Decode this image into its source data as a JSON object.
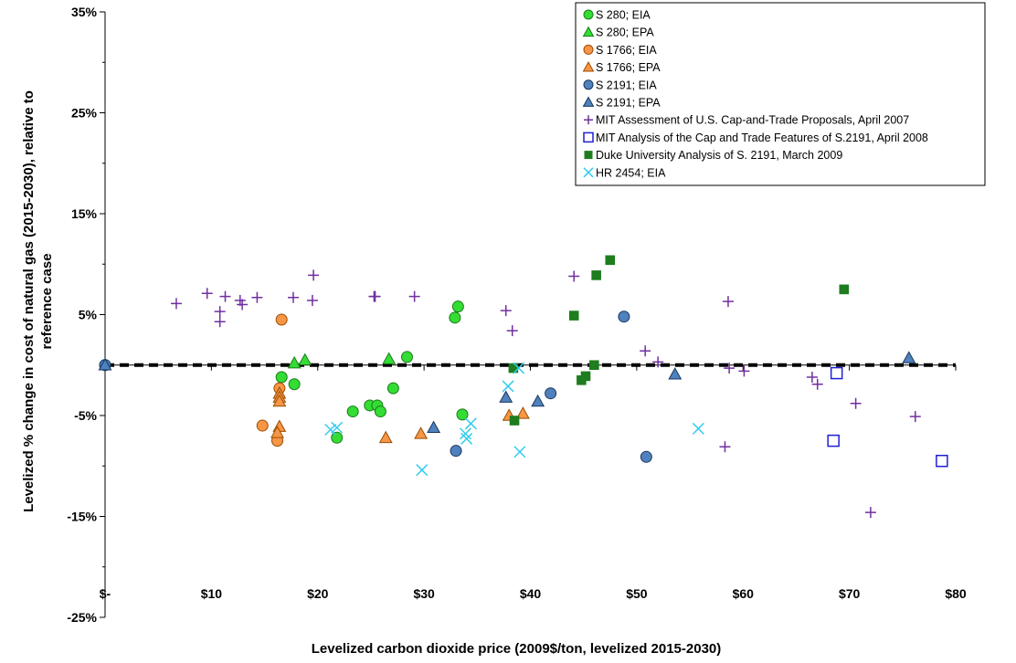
{
  "chart_data": {
    "type": "scatter",
    "title": "",
    "xlabel": "Levelized carbon dioxide price (2009$/ton, levelized 2015-2030)",
    "ylabel": "Levelized % change in cost of natural gas (2015-2030), relative to reference case",
    "ylabel_lines": [
      "Levelized % change in cost of natural gas (2015-2030), relative to",
      "reference case"
    ],
    "xlim": [
      0,
      80
    ],
    "ylim": [
      -25,
      35
    ],
    "x_ticks": [
      {
        "value": 0,
        "label": "$-"
      },
      {
        "value": 10,
        "label": "$10"
      },
      {
        "value": 20,
        "label": "$20"
      },
      {
        "value": 30,
        "label": "$30"
      },
      {
        "value": 40,
        "label": "$40"
      },
      {
        "value": 50,
        "label": "$50"
      },
      {
        "value": 60,
        "label": "$60"
      },
      {
        "value": 70,
        "label": "$70"
      },
      {
        "value": 80,
        "label": "$80"
      }
    ],
    "y_ticks": [
      {
        "value": 35,
        "label": "35%"
      },
      {
        "value": 25,
        "label": "25%"
      },
      {
        "value": 15,
        "label": "15%"
      },
      {
        "value": 5,
        "label": "5%"
      },
      {
        "value": -5,
        "label": "-5%"
      },
      {
        "value": -15,
        "label": "-15%"
      },
      {
        "value": -25,
        "label": "-25%"
      }
    ],
    "grid": false,
    "legend_position": "top-right",
    "reference_line": {
      "y": 0,
      "style": "dashed",
      "color": "#000000"
    },
    "series": [
      {
        "name": "S 280; EIA",
        "marker": "circle",
        "color": "#33dd33",
        "stroke": "#1a7a1a",
        "points": [
          [
            0,
            0
          ],
          [
            16.6,
            -1.2
          ],
          [
            17.8,
            -1.9
          ],
          [
            23.3,
            -4.6
          ],
          [
            24.9,
            -4.0
          ],
          [
            25.6,
            -4.0
          ],
          [
            25.9,
            -4.6
          ],
          [
            27.1,
            -2.3
          ],
          [
            28.4,
            0.8
          ],
          [
            32.9,
            4.7
          ],
          [
            33.2,
            5.8
          ],
          [
            33.6,
            -4.9
          ],
          [
            21.8,
            -7.2
          ]
        ]
      },
      {
        "name": "S 280; EPA",
        "marker": "triangle",
        "color": "#33dd33",
        "stroke": "#1a7a1a",
        "points": [
          [
            17.8,
            0.2
          ],
          [
            18.8,
            0.5
          ],
          [
            26.7,
            0.6
          ]
        ]
      },
      {
        "name": "S 1766; EIA",
        "marker": "circle",
        "color": "#f79646",
        "stroke": "#9a4d00",
        "points": [
          [
            16.6,
            4.5
          ],
          [
            14.8,
            -6.0
          ],
          [
            16.2,
            -7.5
          ],
          [
            16.4,
            -2.3
          ]
        ]
      },
      {
        "name": "S 1766; EPA",
        "marker": "triangle",
        "color": "#f79646",
        "stroke": "#9a4d00",
        "points": [
          [
            16.4,
            -2.8
          ],
          [
            16.4,
            -3.2
          ],
          [
            16.4,
            -3.6
          ],
          [
            16.4,
            -6.1
          ],
          [
            16.2,
            -6.7
          ],
          [
            26.4,
            -7.2
          ],
          [
            29.7,
            -6.8
          ],
          [
            38.0,
            -5.0
          ],
          [
            39.3,
            -4.8
          ]
        ]
      },
      {
        "name": "S 2191; EIA",
        "marker": "circle",
        "color": "#4f81bd",
        "stroke": "#17375e",
        "points": [
          [
            0,
            0
          ],
          [
            33.0,
            -8.5
          ],
          [
            41.9,
            -2.8
          ],
          [
            48.8,
            4.8
          ],
          [
            50.9,
            -9.1
          ]
        ]
      },
      {
        "name": "S 2191; EPA",
        "marker": "triangle",
        "color": "#4f81bd",
        "stroke": "#17375e",
        "points": [
          [
            0,
            0
          ],
          [
            30.9,
            -6.2
          ],
          [
            37.7,
            -3.2
          ],
          [
            40.7,
            -3.6
          ],
          [
            53.6,
            -0.9
          ],
          [
            75.6,
            0.7
          ]
        ]
      },
      {
        "name": "MIT Assessment of U.S. Cap-and-Trade Proposals, April 2007",
        "marker": "plus",
        "color": "#7030a0",
        "points": [
          [
            6.7,
            6.1
          ],
          [
            9.6,
            7.1
          ],
          [
            10.8,
            5.3
          ],
          [
            10.8,
            4.3
          ],
          [
            11.3,
            6.8
          ],
          [
            12.7,
            6.4
          ],
          [
            12.9,
            6.0
          ],
          [
            14.3,
            6.7
          ],
          [
            17.7,
            6.7
          ],
          [
            19.5,
            6.4
          ],
          [
            19.6,
            8.9
          ],
          [
            25.3,
            6.8
          ],
          [
            25.4,
            6.8
          ],
          [
            29.1,
            6.8
          ],
          [
            37.7,
            5.4
          ],
          [
            38.3,
            3.4
          ],
          [
            44.1,
            8.8
          ],
          [
            50.8,
            1.4
          ],
          [
            52.0,
            0.3
          ],
          [
            58.3,
            -8.1
          ],
          [
            58.6,
            6.3
          ],
          [
            58.7,
            -0.3
          ],
          [
            60.1,
            -0.6
          ],
          [
            66.5,
            -1.2
          ],
          [
            67.0,
            -1.9
          ],
          [
            70.6,
            -3.8
          ],
          [
            72.0,
            -14.6
          ],
          [
            76.2,
            -5.1
          ]
        ]
      },
      {
        "name": "MIT Analysis of the Cap and Trade Features of S.2191, April 2008",
        "marker": "square-open",
        "color": "#1f1fd6",
        "points": [
          [
            68.8,
            -0.8
          ],
          [
            68.5,
            -7.5
          ],
          [
            78.7,
            -9.5
          ]
        ]
      },
      {
        "name": "Duke University Analysis of S. 2191, March 2009",
        "marker": "square",
        "color": "#1e7d1e",
        "points": [
          [
            38.4,
            -0.3
          ],
          [
            38.5,
            -5.5
          ],
          [
            44.1,
            4.9
          ],
          [
            44.8,
            -1.5
          ],
          [
            45.2,
            -1.1
          ],
          [
            46.0,
            0.0
          ],
          [
            46.2,
            8.9
          ],
          [
            47.5,
            10.4
          ],
          [
            69.5,
            7.5
          ]
        ]
      },
      {
        "name": "HR 2454; EIA",
        "marker": "x",
        "color": "#33ccee",
        "points": [
          [
            21.2,
            -6.4
          ],
          [
            21.8,
            -6.2
          ],
          [
            29.8,
            -10.4
          ],
          [
            33.9,
            -6.8
          ],
          [
            34.0,
            -7.3
          ],
          [
            34.4,
            -5.8
          ],
          [
            37.9,
            -2.1
          ],
          [
            38.9,
            -0.3
          ],
          [
            39.0,
            -8.6
          ],
          [
            55.8,
            -6.3
          ]
        ]
      }
    ]
  }
}
